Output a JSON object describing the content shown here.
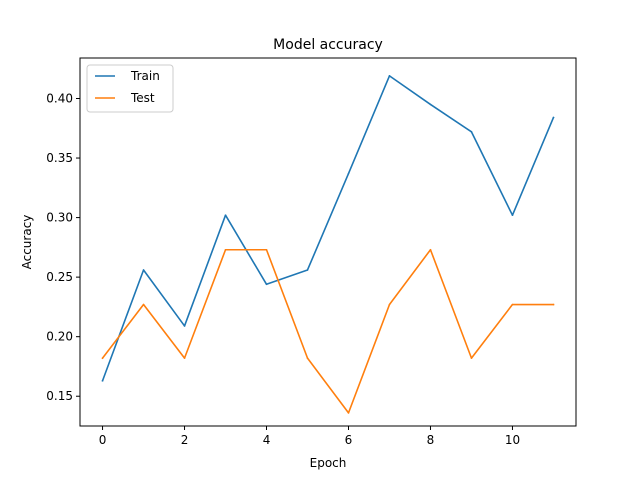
{
  "chart_data": {
    "type": "line",
    "title": "Model accuracy",
    "xlabel": "Epoch",
    "ylabel": "Accuracy",
    "x": [
      0,
      1,
      2,
      3,
      4,
      5,
      6,
      7,
      8,
      9,
      10,
      11
    ],
    "xlim": [
      -0.55,
      11.55
    ],
    "ylim": [
      0.125,
      0.434
    ],
    "xticks": [
      0,
      2,
      4,
      6,
      8,
      10
    ],
    "xtick_labels": [
      "0",
      "2",
      "4",
      "6",
      "8",
      "10"
    ],
    "yticks": [
      0.15,
      0.2,
      0.25,
      0.3,
      0.35,
      0.4
    ],
    "ytick_labels": [
      "0.15",
      "0.20",
      "0.25",
      "0.30",
      "0.35",
      "0.40"
    ],
    "grid": false,
    "legend_position": "top-left",
    "series": [
      {
        "name": "Train",
        "color": "#1f77b4",
        "values": [
          0.163,
          0.256,
          0.209,
          0.302,
          0.244,
          0.256,
          0.337,
          0.419,
          0.395,
          0.372,
          0.302,
          0.384
        ]
      },
      {
        "name": "Test",
        "color": "#ff7f0e",
        "values": [
          0.182,
          0.227,
          0.182,
          0.273,
          0.273,
          0.182,
          0.136,
          0.227,
          0.273,
          0.182,
          0.227,
          0.227
        ]
      }
    ]
  }
}
